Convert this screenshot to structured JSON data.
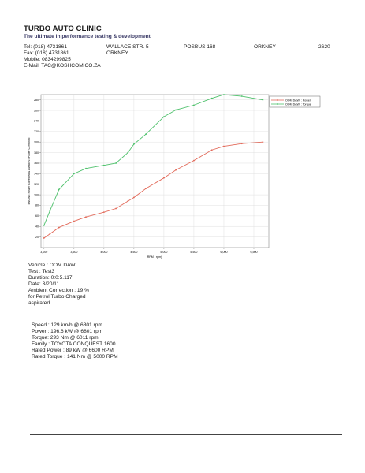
{
  "header": {
    "company": "TURBO AUTO CLINIC",
    "tagline": "The ultimate in performance testing & development",
    "tel": "Tel: (018) 4731861",
    "fax": "Fax: (018) 4731861",
    "mobile": "Mobile: 0834299825",
    "email": "E-Mail: TAC@KOSHCOM.CO.ZA",
    "street": "WALLACE STR. 5",
    "town": "ORKNEY",
    "posbus": "POSBUS 168",
    "town2": "ORKNEY",
    "code": "2620"
  },
  "chart_data": {
    "type": "line",
    "title": "",
    "xlabel": "RPM ( rpm)",
    "ylabel": "ENGINE Power Corrected & AMBIENT Power Corrected",
    "xlim": [
      2950,
      6750
    ],
    "ylim": [
      0,
      290
    ],
    "xticks": [
      "3,000",
      "3,500",
      "4,000",
      "4,500",
      "5,000",
      "5,500",
      "6,000",
      "6,500"
    ],
    "xtick_values": [
      3000,
      3500,
      4000,
      4500,
      5000,
      5500,
      6000,
      6500
    ],
    "yticks": [
      "20",
      "40",
      "60",
      "80",
      "100",
      "120",
      "140",
      "160",
      "180",
      "200",
      "220",
      "240",
      "260",
      "280"
    ],
    "ytick_values": [
      20,
      40,
      60,
      80,
      100,
      120,
      140,
      160,
      180,
      200,
      220,
      240,
      260,
      280
    ],
    "grid": true,
    "legend_position": "top-right",
    "series": [
      {
        "name": "OOM DAWI : Power",
        "color": "#e26a5a",
        "x": [
          3000,
          3100,
          3250,
          3500,
          3700,
          4000,
          4200,
          4400,
          4500,
          4700,
          5000,
          5200,
          5500,
          5800,
          6000,
          6300,
          6650
        ],
        "y": [
          18,
          26,
          38,
          50,
          58,
          67,
          74,
          88,
          95,
          112,
          132,
          147,
          165,
          185,
          192,
          197,
          200
        ]
      },
      {
        "name": "OOM DAWI : Torque",
        "color": "#4cc06a",
        "x": [
          3000,
          3100,
          3250,
          3500,
          3700,
          4000,
          4200,
          4400,
          4500,
          4700,
          5000,
          5200,
          5500,
          5800,
          6000,
          6300,
          6650
        ],
        "y": [
          42,
          70,
          110,
          140,
          150,
          156,
          160,
          180,
          196,
          215,
          248,
          261,
          270,
          283,
          290,
          287,
          280
        ]
      }
    ]
  },
  "run": {
    "vehicle": "Vehicle : OOM DAWI",
    "test": "Test   : Test3",
    "duration": "Duration: 0:0:5.117",
    "date": "Date:  3/20/11",
    "ambient": "Ambient Correction : 19 %",
    "fuel": " for Petrol Turbo Charged",
    "aspirated": "aspirated."
  },
  "results": {
    "speed": "Speed : 129 km/h @ 6801 rpm",
    "power": "Power : 196.6 kW @ 6801 rpm",
    "torque": "Torque: 293 Nm @ 6011 rpm",
    "family": "Family : TOYOTA CONQUEST 1600",
    "rated_power": "Rated Power : 89 kW @ 6600 RPM",
    "rated_torque": "Rated Torque : 141 Nm @ 5000 RPM"
  }
}
